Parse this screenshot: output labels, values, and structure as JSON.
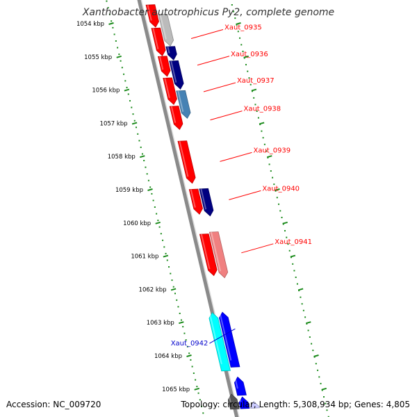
{
  "title": "Xanthobacter autotrophicus Py2, complete genome",
  "footer": {
    "accession": "Accession: NC_009720",
    "summary": "Topology: circular; Length: 5,308,934 bp; Genes: 4,805"
  },
  "ruler": {
    "color": "#1a8a1a",
    "ticks": [
      "1054 kbp",
      "1055 kbp",
      "1056 kbp",
      "1057 kbp",
      "1058 kbp",
      "1059 kbp",
      "1060 kbp",
      "1061 kbp",
      "1062 kbp",
      "1063 kbp",
      "1064 kbp",
      "1065 kbp"
    ]
  },
  "backbone_color": "#8a8a8a",
  "genes": [
    {
      "lane": 0,
      "start": -0.55,
      "end": 0.12,
      "strand": "+",
      "color": "#ff0000"
    },
    {
      "lane": 1,
      "start": -0.25,
      "end": 0.7,
      "strand": "+",
      "color": "#bbbbbb"
    },
    {
      "lane": 0,
      "start": 0.15,
      "end": 0.98,
      "strand": "+",
      "color": "#ff0000"
    },
    {
      "lane": 1,
      "start": 0.72,
      "end": 1.12,
      "strand": "+",
      "color": "#000080"
    },
    {
      "lane": 0,
      "start": 1.0,
      "end": 1.6,
      "strand": "+",
      "color": "#ff0000"
    },
    {
      "lane": 1,
      "start": 1.15,
      "end": 2.0,
      "strand": "+",
      "color": "#000080"
    },
    {
      "lane": 0,
      "start": 1.65,
      "end": 2.45,
      "strand": "+",
      "color": "#ff0000"
    },
    {
      "lane": 1,
      "start": 2.05,
      "end": 2.88,
      "strand": "+",
      "color": "#4682b4"
    },
    {
      "lane": 0,
      "start": 2.5,
      "end": 3.2,
      "strand": "+",
      "color": "#ff0000"
    },
    {
      "lane": 0,
      "start": 3.55,
      "end": 4.82,
      "strand": "+",
      "color": "#ff0000"
    },
    {
      "lane": 0,
      "start": 5.0,
      "end": 5.75,
      "strand": "+",
      "color": "#ff0000"
    },
    {
      "lane": 1,
      "start": 5.0,
      "end": 5.82,
      "strand": "+",
      "color": "#000080"
    },
    {
      "lane": 0,
      "start": 6.35,
      "end": 7.6,
      "strand": "+",
      "color": "#ff0000"
    },
    {
      "lane": 1,
      "start": 6.3,
      "end": 7.68,
      "strand": "+",
      "color": "#f08080"
    },
    {
      "lane": -1,
      "start": 8.7,
      "end": 10.45,
      "strand": "-",
      "color": "#00ffff"
    },
    {
      "lane": 0,
      "start": 8.7,
      "end": 10.35,
      "strand": "-",
      "color": "#0000ff"
    },
    {
      "lane": 0,
      "start": 10.65,
      "end": 11.2,
      "strand": "-",
      "color": "#0000ff"
    },
    {
      "lane": -1,
      "start": 11.15,
      "end": 11.6,
      "strand": "-",
      "color": "#555555"
    },
    {
      "lane": 0,
      "start": 11.25,
      "end": 11.6,
      "strand": "-",
      "color": "#0000ff"
    },
    {
      "lane": 1,
      "start": 11.4,
      "end": 11.6,
      "strand": "-",
      "color": "#ccccff"
    }
  ],
  "gene_labels": [
    {
      "text": "Xaut_0935",
      "side": "right",
      "pos": 0.45,
      "color": "#ff0000"
    },
    {
      "text": "Xaut_0936",
      "side": "right",
      "pos": 1.25,
      "color": "#ff0000"
    },
    {
      "text": "Xaut_0937",
      "side": "right",
      "pos": 2.05,
      "color": "#ff0000"
    },
    {
      "text": "Xaut_0938",
      "side": "right",
      "pos": 2.9,
      "color": "#ff0000"
    },
    {
      "text": "Xaut_0939",
      "side": "right",
      "pos": 4.15,
      "color": "#ff0000"
    },
    {
      "text": "Xaut_0940",
      "side": "right",
      "pos": 5.3,
      "color": "#ff0000"
    },
    {
      "text": "Xaut_0941",
      "side": "right",
      "pos": 6.9,
      "color": "#ff0000"
    },
    {
      "text": "Xaut_0942",
      "side": "left",
      "pos": 9.5,
      "color": "#0000cc"
    }
  ]
}
